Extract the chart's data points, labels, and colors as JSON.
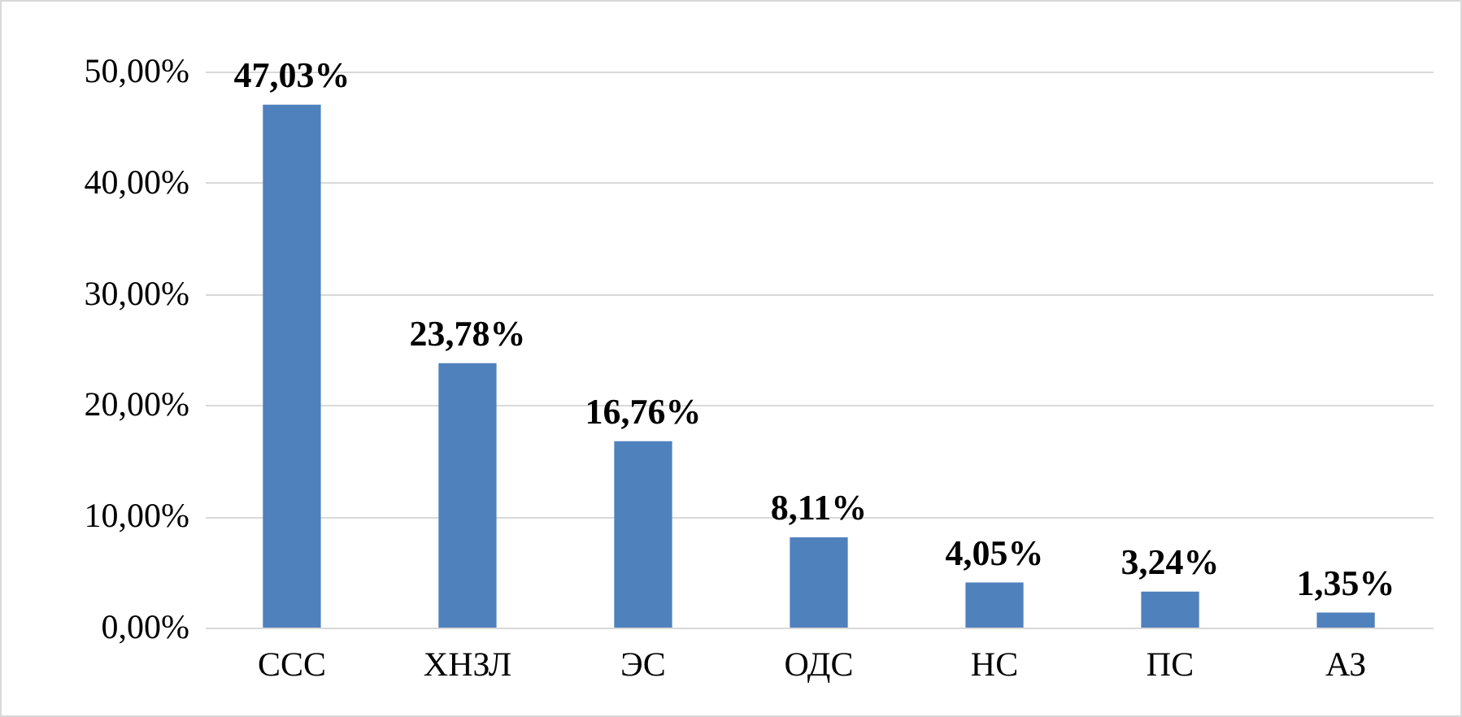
{
  "chart_data": {
    "type": "bar",
    "categories": [
      "ССС",
      "ХНЗЛ",
      "ЭС",
      "ОДС",
      "НС",
      "ПС",
      "АЗ"
    ],
    "values": [
      47.03,
      23.78,
      16.76,
      8.11,
      4.05,
      3.24,
      1.35
    ],
    "value_labels": [
      "47,03%",
      "23,78%",
      "16,76%",
      "8,11%",
      "4,05%",
      "3,24%",
      "1,35%"
    ],
    "color": "#4f81bd",
    "ylim": [
      0,
      50
    ],
    "yticks": [
      {
        "value": 0,
        "label": "0,00%"
      },
      {
        "value": 10,
        "label": "10,00%"
      },
      {
        "value": 20,
        "label": "20,00%"
      },
      {
        "value": 30,
        "label": "30,00%"
      },
      {
        "value": 40,
        "label": "40,00%"
      },
      {
        "value": 50,
        "label": "50,00%"
      }
    ],
    "grid": "y"
  }
}
